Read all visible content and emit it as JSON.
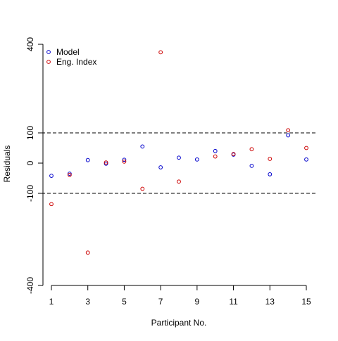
{
  "chart_data": {
    "type": "scatter",
    "xlabel": "Participant No.",
    "ylabel": "Residuals",
    "xlim": [
      1,
      15
    ],
    "ylim": [
      -400,
      400
    ],
    "x_ticks": [
      1,
      3,
      5,
      7,
      9,
      11,
      13,
      15
    ],
    "x_tick_labels": [
      "1",
      "3",
      "5",
      "7",
      "9",
      "11",
      "13",
      "15"
    ],
    "y_ticks": [
      -400,
      -100,
      0,
      100,
      400
    ],
    "y_tick_labels": [
      "-400",
      "-100",
      "0",
      "100",
      "400"
    ],
    "reference_lines": [
      100,
      -100
    ],
    "legend_position": "top-left",
    "grid": false,
    "x": [
      1,
      2,
      3,
      4,
      5,
      6,
      7,
      8,
      9,
      10,
      11,
      12,
      13,
      14,
      15
    ],
    "series": [
      {
        "name": "Model",
        "color": "#0000cc",
        "values": [
          -42,
          -35,
          10,
          -2,
          11,
          55,
          -14,
          18,
          12,
          40,
          28,
          -9,
          -37,
          92,
          12
        ]
      },
      {
        "name": "Eng. Index",
        "color": "#cc0000",
        "values": [
          -135,
          -39,
          -293,
          2,
          5,
          -85,
          373,
          -61,
          null,
          22,
          30,
          46,
          14,
          109,
          50
        ]
      }
    ]
  }
}
